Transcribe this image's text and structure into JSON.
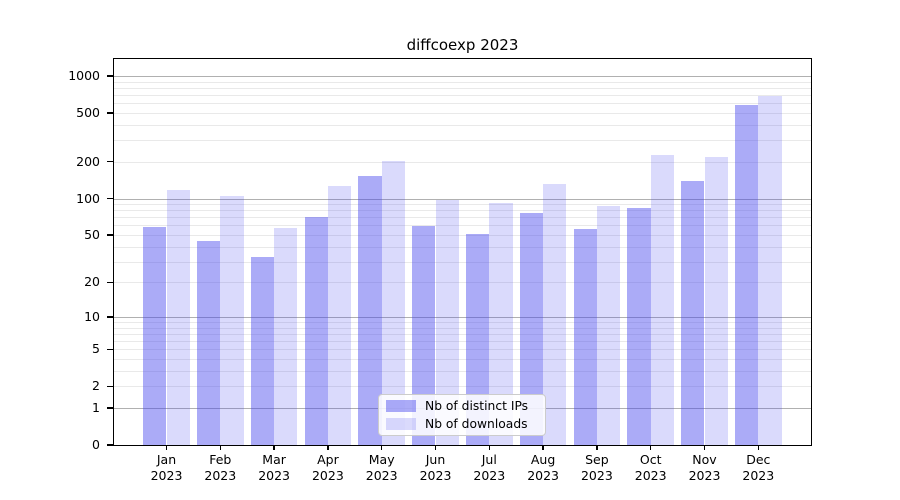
{
  "figure": {
    "title": "diffcoexp 2023"
  },
  "chart_data": {
    "type": "bar",
    "title": "diffcoexp 2023",
    "categories": [
      "Jan",
      "Feb",
      "Mar",
      "Apr",
      "May",
      "Jun",
      "Jul",
      "Aug",
      "Sep",
      "Oct",
      "Nov",
      "Dec"
    ],
    "x_tick_second_line": "2023",
    "series": [
      {
        "name": "Nb of distinct IPs",
        "color": "rgba(68,68,238,0.45)",
        "values": [
          58,
          45,
          33,
          71,
          152,
          59,
          51,
          76,
          56,
          83,
          139,
          580
        ]
      },
      {
        "name": "Nb of downloads",
        "color": "rgba(68,68,238,0.2)",
        "values": [
          117,
          104,
          57,
          127,
          203,
          97,
          92,
          131,
          87,
          228,
          220,
          690
        ]
      }
    ],
    "y_axis": {
      "scale": "log1p",
      "tick_values": [
        0,
        1,
        2,
        5,
        10,
        20,
        50,
        100,
        200,
        500,
        1000
      ],
      "major_grid_values": [
        1,
        10,
        100,
        1000
      ],
      "top_value": 1100
    },
    "legend": {
      "position": "lower center"
    },
    "grid": true
  },
  "colors": {
    "major_grid": "#b0b0b0",
    "minor_grid": "#e9e9e9",
    "spine": "#000000",
    "background": "#ffffff",
    "text": "#000000"
  }
}
